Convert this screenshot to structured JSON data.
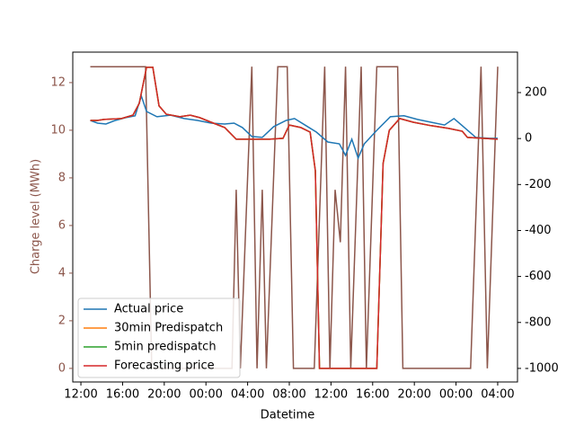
{
  "chart_data": {
    "type": "line",
    "xlabel": "Datetime",
    "ylabel": "Charge level (MWh)",
    "ylabel_color": "#8c564b",
    "xlim": [
      -0.78,
      41.9
    ],
    "xticks": [
      {
        "value": 0,
        "label": "12:00"
      },
      {
        "value": 4,
        "label": "16:00"
      },
      {
        "value": 8,
        "label": "20:00"
      },
      {
        "value": 12,
        "label": "00:00"
      },
      {
        "value": 16,
        "label": "04:00"
      },
      {
        "value": 20,
        "label": "08:00"
      },
      {
        "value": 24,
        "label": "12:00"
      },
      {
        "value": 28,
        "label": "16:00"
      },
      {
        "value": 32,
        "label": "20:00"
      },
      {
        "value": 36,
        "label": "00:00"
      },
      {
        "value": 40,
        "label": "04:00"
      }
    ],
    "ylim": [
      -0.57,
      13.28
    ],
    "yticks": [
      0,
      2,
      4,
      6,
      8,
      10,
      12
    ],
    "y2lim": [
      -1059,
      376
    ],
    "y2ticks": [
      -1000,
      -800,
      -600,
      -400,
      -200,
      0,
      200
    ],
    "legend": "lower left",
    "series": [
      {
        "color": "#8c564b",
        "axis": "y",
        "x": [
          0.9,
          6.2,
          6.8,
          14.5,
          14.9,
          15.3,
          16.4,
          16.9,
          17.4,
          17.8,
          18.9,
          19.8,
          20.4,
          22.4,
          23.4,
          23.9,
          24.4,
          24.9,
          25.4,
          25.9,
          26.9,
          27.4,
          28.4,
          30.4,
          30.9,
          37.4,
          38.4,
          39.0,
          40.0
        ],
        "values": [
          12.67,
          12.67,
          0,
          0,
          7.5,
          0,
          12.67,
          0,
          7.5,
          0,
          12.67,
          12.67,
          0,
          0,
          12.67,
          0,
          7.5,
          5.3,
          12.67,
          0,
          12.67,
          0,
          12.67,
          12.67,
          0,
          0,
          12.67,
          0,
          12.67
        ]
      },
      {
        "name": "Actual price",
        "color": "#1f77b4",
        "axis": "y2",
        "x": [
          0.9,
          1.6,
          2.4,
          3.3,
          4.3,
          5.2,
          5.8,
          6.3,
          7.3,
          8.6,
          9.9,
          11.2,
          12.5,
          13.8,
          14.7,
          15.5,
          16.4,
          17.4,
          18.5,
          19.7,
          20.5,
          21.6,
          22.6,
          23.7,
          24.8,
          25.4,
          26.0,
          26.6,
          27.2,
          28.4,
          29.7,
          31.0,
          32.3,
          33.6,
          34.9,
          35.8,
          36.6,
          37.9,
          39.2,
          40.0
        ],
        "values": [
          79,
          67,
          63,
          79,
          91,
          99,
          185,
          118,
          95,
          102,
          87,
          79,
          67,
          63,
          67,
          48,
          9,
          5,
          52,
          79,
          87,
          56,
          28,
          -15,
          -23,
          -73,
          -3,
          -85,
          -23,
          36,
          95,
          99,
          83,
          71,
          59,
          87,
          56,
          5,
          1,
          1
        ]
      },
      {
        "name": "30min Predispatch",
        "color": "#ff7f0e",
        "axis": "y2",
        "x": [
          0.9,
          1.6,
          2.2,
          3.9,
          5.0,
          5.6,
          6.3,
          6.9,
          7.5,
          8.2,
          9.5,
          10.5,
          11.4,
          12.5,
          13.8,
          14.9,
          18.1,
          19.4,
          20.0,
          21.1,
          22.0,
          22.5,
          22.9,
          28.4,
          29.0,
          29.6,
          30.6,
          31.9,
          33.6,
          35.3,
          36.6,
          37.1,
          40.0
        ],
        "values": [
          79,
          79,
          83,
          87,
          102,
          153,
          310,
          310,
          142,
          106,
          95,
          102,
          91,
          71,
          48,
          -3,
          -3,
          1,
          59,
          48,
          28,
          -140,
          -1000,
          -1000,
          -109,
          36,
          87,
          71,
          56,
          44,
          32,
          5,
          -3
        ]
      },
      {
        "name": "5min predispatch",
        "color": "#2ca02c",
        "axis": "y2",
        "x": [
          0.9,
          1.6,
          2.2,
          3.9,
          5.0,
          5.6,
          6.3,
          6.9,
          7.5,
          8.2,
          9.5,
          10.5,
          11.4,
          12.5,
          13.8,
          14.9,
          18.1,
          19.4,
          20.0,
          21.1,
          22.0,
          22.5,
          22.9,
          28.4,
          29.0,
          29.6,
          30.6,
          31.9,
          33.6,
          35.3,
          36.6,
          37.1,
          40.0
        ],
        "values": [
          79,
          79,
          83,
          87,
          102,
          153,
          310,
          310,
          142,
          106,
          95,
          102,
          91,
          71,
          48,
          -3,
          -3,
          1,
          59,
          48,
          28,
          -140,
          -1000,
          -1000,
          -109,
          36,
          87,
          71,
          56,
          44,
          32,
          5,
          -3
        ]
      },
      {
        "name": "Forecasting price",
        "color": "#d62728",
        "axis": "y2",
        "x": [
          0.9,
          1.6,
          2.2,
          3.9,
          5.0,
          5.6,
          6.3,
          6.9,
          7.5,
          8.2,
          9.5,
          10.5,
          11.4,
          12.5,
          13.8,
          14.9,
          18.1,
          19.4,
          20.0,
          21.1,
          22.0,
          22.5,
          22.9,
          28.4,
          29.0,
          29.6,
          30.6,
          31.9,
          33.6,
          35.3,
          36.6,
          37.1,
          40.0
        ],
        "values": [
          79,
          79,
          83,
          87,
          102,
          153,
          310,
          310,
          142,
          106,
          95,
          102,
          91,
          71,
          48,
          -3,
          -3,
          1,
          59,
          48,
          28,
          -140,
          -1000,
          -1000,
          -109,
          36,
          87,
          71,
          56,
          44,
          32,
          5,
          -3
        ]
      }
    ]
  }
}
